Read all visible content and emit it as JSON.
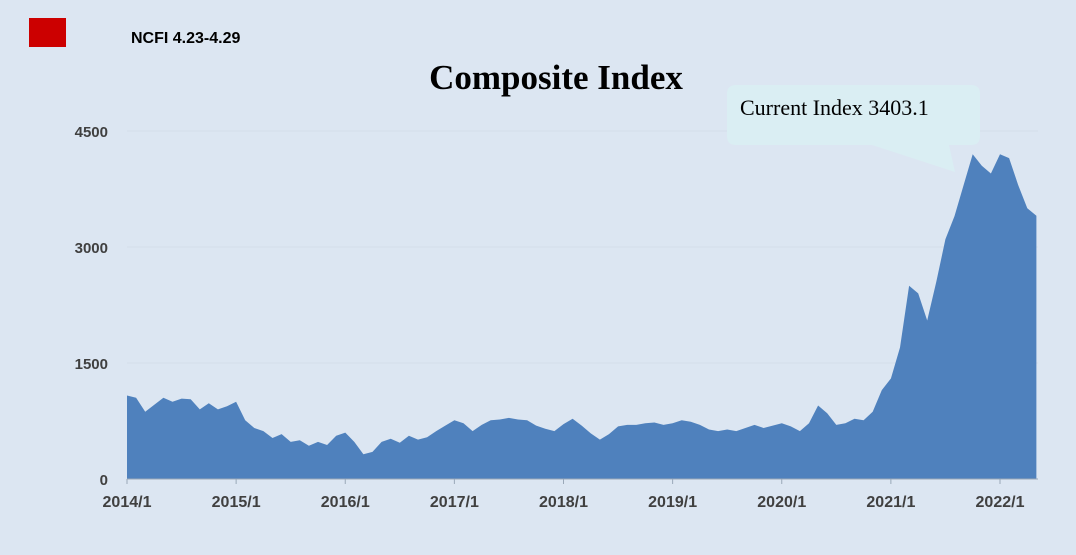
{
  "header": {
    "label": "NCFI 4.23-4.29",
    "flag_color": "#cc0000"
  },
  "annotation": {
    "text": "Current Index 3403.1"
  },
  "colors": {
    "area_fill": "#4f81bd",
    "callout_fill": "#daeef3",
    "background": "#dce6f2",
    "grid": "#d5dee9"
  },
  "chart_data": {
    "type": "area",
    "title": "Composite Index",
    "xlabel": "",
    "ylabel": "",
    "ylim": [
      0,
      4500
    ],
    "y_ticks": [
      0,
      1500,
      3000,
      4500
    ],
    "y_tick_labels": [
      "0",
      "1500",
      "3000",
      "4500"
    ],
    "x_tick_labels": [
      "2014/1",
      "2015/1",
      "2016/1",
      "2017/1",
      "2018/1",
      "2019/1",
      "2020/1",
      "2021/1",
      "2022/1"
    ],
    "grid": true,
    "series": [
      {
        "x": [
          "2014/1",
          "2014/2",
          "2014/3",
          "2014/4",
          "2014/5",
          "2014/6",
          "2014/7",
          "2014/8",
          "2014/9",
          "2014/10",
          "2014/11",
          "2014/12",
          "2015/1",
          "2015/2",
          "2015/3",
          "2015/4",
          "2015/5",
          "2015/6",
          "2015/7",
          "2015/8",
          "2015/9",
          "2015/10",
          "2015/11",
          "2015/12",
          "2016/1",
          "2016/2",
          "2016/3",
          "2016/4",
          "2016/5",
          "2016/6",
          "2016/7",
          "2016/8",
          "2016/9",
          "2016/10",
          "2016/11",
          "2016/12",
          "2017/1",
          "2017/2",
          "2017/3",
          "2017/4",
          "2017/5",
          "2017/6",
          "2017/7",
          "2017/8",
          "2017/9",
          "2017/10",
          "2017/11",
          "2017/12",
          "2018/1",
          "2018/2",
          "2018/3",
          "2018/4",
          "2018/5",
          "2018/6",
          "2018/7",
          "2018/8",
          "2018/9",
          "2018/10",
          "2018/11",
          "2018/12",
          "2019/1",
          "2019/2",
          "2019/3",
          "2019/4",
          "2019/5",
          "2019/6",
          "2019/7",
          "2019/8",
          "2019/9",
          "2019/10",
          "2019/11",
          "2019/12",
          "2020/1",
          "2020/2",
          "2020/3",
          "2020/4",
          "2020/5",
          "2020/6",
          "2020/7",
          "2020/8",
          "2020/9",
          "2020/10",
          "2020/11",
          "2020/12",
          "2021/1",
          "2021/2",
          "2021/3",
          "2021/4",
          "2021/5",
          "2021/6",
          "2021/7",
          "2021/8",
          "2021/9",
          "2021/10",
          "2021/11",
          "2021/12",
          "2022/1",
          "2022/2",
          "2022/3",
          "2022/4",
          "2022/5"
        ],
        "values": [
          1080,
          1050,
          870,
          960,
          1050,
          1000,
          1040,
          1030,
          900,
          980,
          900,
          940,
          1000,
          760,
          660,
          620,
          530,
          580,
          480,
          500,
          430,
          480,
          440,
          560,
          600,
          480,
          320,
          350,
          480,
          520,
          470,
          560,
          510,
          540,
          620,
          690,
          760,
          720,
          620,
          700,
          760,
          770,
          790,
          770,
          760,
          690,
          650,
          620,
          710,
          780,
          690,
          590,
          510,
          580,
          680,
          700,
          700,
          720,
          730,
          700,
          720,
          760,
          740,
          700,
          640,
          620,
          640,
          620,
          660,
          700,
          660,
          690,
          720,
          680,
          620,
          720,
          950,
          850,
          700,
          720,
          780,
          760,
          870,
          1150,
          1300,
          1700,
          2500,
          2400,
          2050,
          2550,
          3100,
          3400,
          3800,
          4200,
          4050,
          3950,
          4200,
          4150,
          3800,
          3500,
          3403
        ]
      }
    ]
  }
}
